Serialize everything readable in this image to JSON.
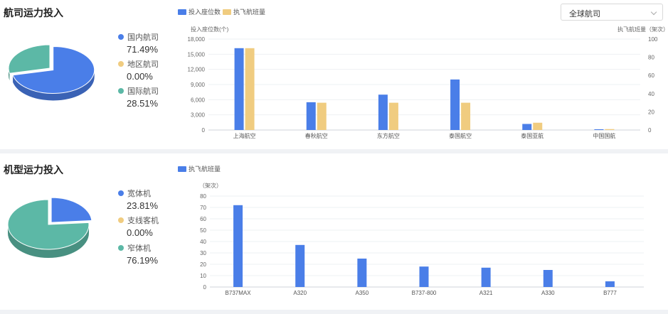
{
  "section1": {
    "title": "航司运力投入",
    "select": {
      "value": "全球航司"
    },
    "pie_legend": [
      {
        "label": "国内航司",
        "pct": "71.49%",
        "color": "#4a7ee8"
      },
      {
        "label": "地区航司",
        "pct": "0.00%",
        "color": "#f0cc80"
      },
      {
        "label": "国际航司",
        "pct": "28.51%",
        "color": "#5cb8a6"
      }
    ]
  },
  "section2": {
    "title": "机型运力投入",
    "pie_legend": [
      {
        "label": "宽体机",
        "pct": "23.81%",
        "color": "#4a7ee8"
      },
      {
        "label": "支线客机",
        "pct": "0.00%",
        "color": "#f0cc80"
      },
      {
        "label": "窄体机",
        "pct": "76.19%",
        "color": "#5cb8a6"
      }
    ]
  },
  "chart_data": [
    {
      "type": "pie",
      "labels": [
        "国内航司",
        "地区航司",
        "国际航司"
      ],
      "values": [
        71.49,
        0.0,
        28.51
      ],
      "colors": [
        "#4a7ee8",
        "#f0cc80",
        "#5cb8a6"
      ]
    },
    {
      "type": "bar",
      "categories": [
        "上海航空",
        "春秋航空",
        "东方航空",
        "泰国航空",
        "泰国亚航",
        "中国国航"
      ],
      "series": [
        {
          "name": "投入座位数",
          "axis": "left",
          "color": "#4a7ee8",
          "values": [
            16200,
            5500,
            7000,
            10000,
            1200,
            150
          ]
        },
        {
          "name": "执飞航班量",
          "axis": "right",
          "color": "#f0cc80",
          "values": [
            90,
            30,
            30,
            30,
            8,
            1
          ]
        }
      ],
      "ylabel_left": "投入座位数(个)",
      "ylabel_right": "执飞航班量（架次）",
      "ylim_left": [
        0,
        18000
      ],
      "yticks_left": [
        "0",
        "3,000",
        "6,000",
        "9,000",
        "12,000",
        "15,000",
        "18,000"
      ],
      "ylim_right": [
        0,
        100
      ],
      "yticks_right": [
        "0",
        "20",
        "40",
        "60",
        "80",
        "100"
      ],
      "legend": "top-left"
    },
    {
      "type": "pie",
      "labels": [
        "宽体机",
        "支线客机",
        "窄体机"
      ],
      "values": [
        23.81,
        0.0,
        76.19
      ],
      "colors": [
        "#4a7ee8",
        "#f0cc80",
        "#5cb8a6"
      ]
    },
    {
      "type": "bar",
      "categories": [
        "B737MAX",
        "A320",
        "A350",
        "B737-800",
        "A321",
        "A330",
        "B777"
      ],
      "series": [
        {
          "name": "执飞航班量",
          "color": "#4a7ee8",
          "values": [
            72,
            37,
            25,
            18,
            17,
            15,
            5
          ]
        }
      ],
      "ylabel": "（架次）",
      "ylim": [
        0,
        80
      ],
      "yticks": [
        "0",
        "10",
        "20",
        "30",
        "40",
        "50",
        "60",
        "70",
        "80"
      ],
      "legend": "top-left"
    }
  ]
}
